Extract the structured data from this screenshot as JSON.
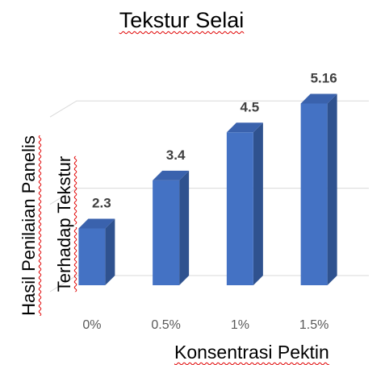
{
  "chart_data": {
    "type": "bar",
    "title": "Tekstur Selai",
    "ylabel": [
      "Hasil Penilaian Panelis",
      "Terhadap Tekstur"
    ],
    "xlabel": "Konsentrasi Pektin",
    "categories": [
      "0%",
      "0.5%",
      "1%",
      "1.5%"
    ],
    "values": [
      2.3,
      3.4,
      4.5,
      5.16
    ],
    "color": "#4472c4",
    "ylim": [
      1,
      6
    ],
    "yticks": [
      1,
      3,
      5
    ],
    "grid": true
  }
}
